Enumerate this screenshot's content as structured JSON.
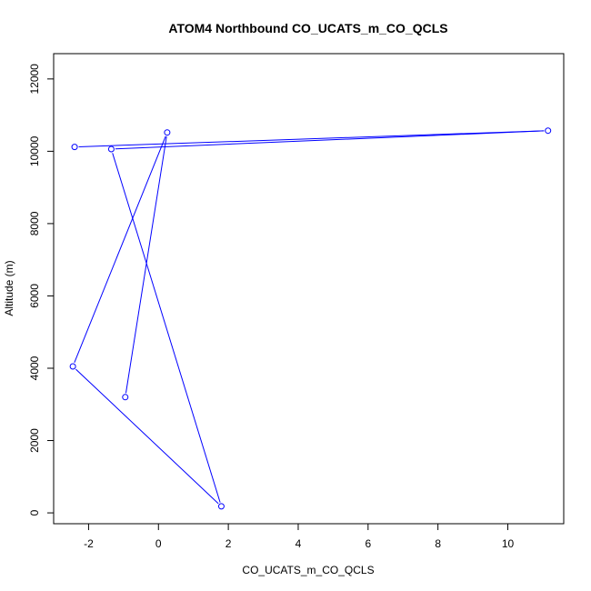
{
  "chart_data": {
    "type": "line",
    "title": "ATOM4 Northbound CO_UCATS_m_CO_QCLS",
    "xlabel": "CO_UCATS_m_CO_QCLS",
    "ylabel": "Altitude (m)",
    "xlim": [
      -3.0,
      11.6
    ],
    "ylim": [
      -300,
      12700
    ],
    "x_ticks": [
      -2,
      0,
      2,
      4,
      6,
      8,
      10
    ],
    "y_ticks": [
      0,
      2000,
      4000,
      6000,
      8000,
      10000,
      12000
    ],
    "grid": false,
    "legend": "none",
    "series": [
      {
        "color": "#0000ff",
        "marker": "open-circle",
        "x": [
          -0.95,
          0.25,
          -2.45,
          1.8,
          -1.35,
          11.15,
          -2.4
        ],
        "y": [
          3200,
          10520,
          4050,
          180,
          10060,
          10570,
          10120
        ]
      }
    ]
  }
}
